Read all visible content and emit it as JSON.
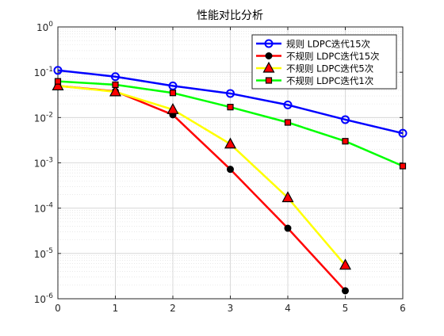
{
  "chart_data": {
    "type": "line",
    "title": "性能对比分析",
    "xlabel": "",
    "ylabel": "",
    "x_ticks": [
      0,
      1,
      2,
      3,
      4,
      5,
      6
    ],
    "xlim": [
      0,
      6
    ],
    "y_scale": "log",
    "ylim": [
      1e-06,
      1
    ],
    "y_ticks": [
      {
        "value": 1e-06,
        "base": "10",
        "exp": "-6"
      },
      {
        "value": 1e-05,
        "base": "10",
        "exp": "-5"
      },
      {
        "value": 0.0001,
        "base": "10",
        "exp": "-4"
      },
      {
        "value": 0.001,
        "base": "10",
        "exp": "-3"
      },
      {
        "value": 0.01,
        "base": "10",
        "exp": "-2"
      },
      {
        "value": 0.1,
        "base": "10",
        "exp": "-1"
      },
      {
        "value": 1,
        "base": "10",
        "exp": "0"
      }
    ],
    "grid": true,
    "legend_position": "top-right",
    "series": [
      {
        "name": "规则 LDPC迭代15次",
        "color": "#0000ff",
        "marker": "circle-open",
        "marker_face": "none",
        "marker_edge": "#0000ff",
        "x": [
          0,
          1,
          2,
          3,
          4,
          5,
          6
        ],
        "y": [
          0.11,
          0.08,
          0.05,
          0.034,
          0.019,
          0.009,
          0.0045
        ]
      },
      {
        "name": "不规则 LDPC迭代15次",
        "color": "#ff0000",
        "marker": "circle-filled",
        "marker_face": "#000000",
        "marker_edge": "#000000",
        "x": [
          0,
          1,
          2,
          3,
          4,
          5
        ],
        "y": [
          0.05,
          0.038,
          0.0115,
          0.00072,
          3.6e-05,
          1.5e-06
        ]
      },
      {
        "name": "不规则 LDPC迭代5次",
        "color": "#ffff00",
        "marker": "triangle",
        "marker_face": "#ff0000",
        "marker_edge": "#000000",
        "x": [
          0,
          1,
          2,
          3,
          4,
          5
        ],
        "y": [
          0.05,
          0.037,
          0.015,
          0.0026,
          0.00017,
          5.5e-06
        ]
      },
      {
        "name": "不规则 LDPC迭代1次",
        "color": "#00ff00",
        "marker": "square",
        "marker_face": "#ff0000",
        "marker_edge": "#000000",
        "x": [
          0,
          1,
          2,
          3,
          4,
          5,
          6
        ],
        "y": [
          0.063,
          0.053,
          0.035,
          0.017,
          0.0078,
          0.003,
          0.00085
        ]
      }
    ]
  }
}
